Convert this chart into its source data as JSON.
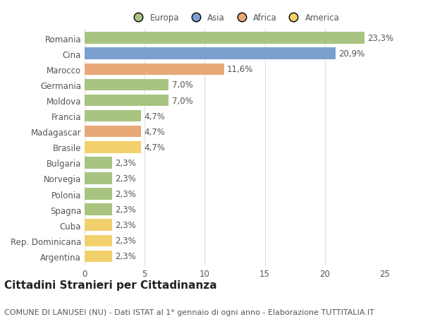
{
  "categories": [
    "Romania",
    "Cina",
    "Marocco",
    "Germania",
    "Moldova",
    "Francia",
    "Madagascar",
    "Brasile",
    "Bulgaria",
    "Norvegia",
    "Polonia",
    "Spagna",
    "Cuba",
    "Rep. Dominicana",
    "Argentina"
  ],
  "values": [
    23.3,
    20.9,
    11.6,
    7.0,
    7.0,
    4.7,
    4.7,
    4.7,
    2.3,
    2.3,
    2.3,
    2.3,
    2.3,
    2.3,
    2.3
  ],
  "labels": [
    "23,3%",
    "20,9%",
    "11,6%",
    "7,0%",
    "7,0%",
    "4,7%",
    "4,7%",
    "4,7%",
    "2,3%",
    "2,3%",
    "2,3%",
    "2,3%",
    "2,3%",
    "2,3%",
    "2,3%"
  ],
  "colors": [
    "#a8c480",
    "#7b9fcf",
    "#e8a878",
    "#a8c480",
    "#a8c480",
    "#a8c480",
    "#e8a878",
    "#f2d06b",
    "#a8c480",
    "#a8c480",
    "#a8c480",
    "#a8c480",
    "#f2d06b",
    "#f2d06b",
    "#f2d06b"
  ],
  "legend_labels": [
    "Europa",
    "Asia",
    "Africa",
    "America"
  ],
  "legend_colors": [
    "#a8c480",
    "#7b9fcf",
    "#e8a878",
    "#f2d06b"
  ],
  "title": "Cittadini Stranieri per Cittadinanza",
  "subtitle": "COMUNE DI LANUSEI (NU) - Dati ISTAT al 1° gennaio di ogni anno - Elaborazione TUTTITALIA.IT",
  "xlim": [
    0,
    25
  ],
  "xticks": [
    0,
    5,
    10,
    15,
    20,
    25
  ],
  "bg_color": "#ffffff",
  "grid_color": "#e0e0e0",
  "bar_height": 0.75,
  "title_fontsize": 11,
  "subtitle_fontsize": 8,
  "tick_fontsize": 8.5,
  "label_fontsize": 8.5
}
